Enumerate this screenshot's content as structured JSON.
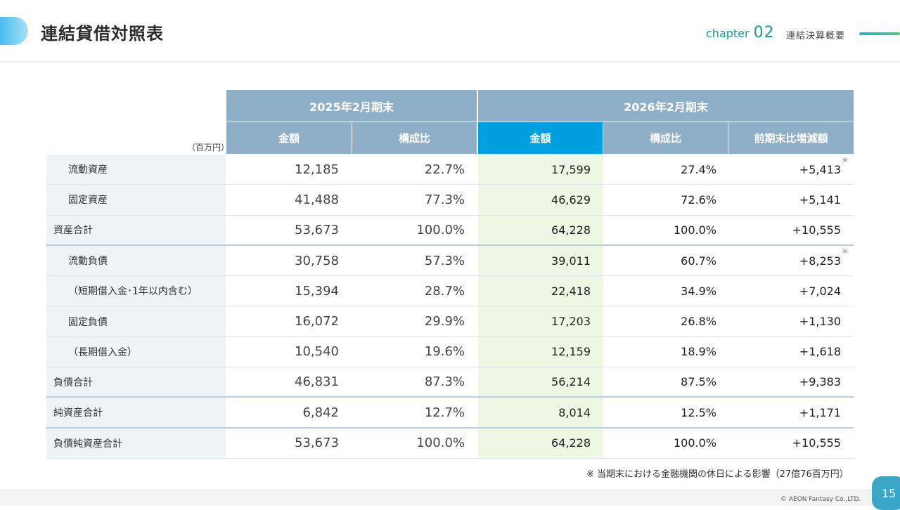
{
  "header": {
    "title": "連結貸借対照表",
    "chapter_label": "chapter",
    "chapter_number": "02",
    "section": "連結決算概要"
  },
  "table": {
    "unit": "（百万円）",
    "period_prev": "2025年2月期末",
    "period_curr": "2026年2月期末",
    "col_amount": "金額",
    "col_ratio": "構成比",
    "col_change": "前期末比増減額",
    "rows": [
      {
        "label": "流動資産",
        "prev_amount": "12,185",
        "prev_ratio": "22.7%",
        "curr_amount": "17,599",
        "curr_ratio": "27.4%",
        "change": "+5,413",
        "mark": "※"
      },
      {
        "label": "固定資産",
        "prev_amount": "41,488",
        "prev_ratio": "77.3%",
        "curr_amount": "46,629",
        "curr_ratio": "72.6%",
        "change": "+5,141",
        "mark": ""
      },
      {
        "label": "資産合計",
        "prev_amount": "53,673",
        "prev_ratio": "100.0%",
        "curr_amount": "64,228",
        "curr_ratio": "100.0%",
        "change": "+10,555",
        "mark": ""
      },
      {
        "label": "流動負債",
        "prev_amount": "30,758",
        "prev_ratio": "57.3%",
        "curr_amount": "39,011",
        "curr_ratio": "60.7%",
        "change": "+8,253",
        "mark": "※"
      },
      {
        "label": "（短期借入金･1年以内含む）",
        "prev_amount": "15,394",
        "prev_ratio": "28.7%",
        "curr_amount": "22,418",
        "curr_ratio": "34.9%",
        "change": "+7,024",
        "mark": ""
      },
      {
        "label": "固定負債",
        "prev_amount": "16,072",
        "prev_ratio": "29.9%",
        "curr_amount": "17,203",
        "curr_ratio": "26.8%",
        "change": "+1,130",
        "mark": ""
      },
      {
        "label": "（長期借入金）",
        "prev_amount": "10,540",
        "prev_ratio": "19.6%",
        "curr_amount": "12,159",
        "curr_ratio": "18.9%",
        "change": "+1,618",
        "mark": ""
      },
      {
        "label": "負債合計",
        "prev_amount": "46,831",
        "prev_ratio": "87.3%",
        "curr_amount": "56,214",
        "curr_ratio": "87.5%",
        "change": "+9,383",
        "mark": ""
      },
      {
        "label": "純資産合計",
        "prev_amount": "6,842",
        "prev_ratio": "12.7%",
        "curr_amount": "8,014",
        "curr_ratio": "12.5%",
        "change": "+1,171",
        "mark": ""
      },
      {
        "label": "負債純資産合計",
        "prev_amount": "53,673",
        "prev_ratio": "100.0%",
        "curr_amount": "64,228",
        "curr_ratio": "100.0%",
        "change": "+10,555",
        "mark": ""
      }
    ]
  },
  "footnote": "※ 当期末における金融機関の休日による影響（27億76百万円）",
  "footer": {
    "copyright": "© AEON Fantasy Co.,LTD.",
    "page_number": "15"
  },
  "colors": {
    "header_grey": "#8fafc8",
    "header_blue": "#00a0e0",
    "highlight_green": "#eef6e4",
    "label_bg": "#eef3f7",
    "chapter_teal": "#1b9a8c"
  }
}
